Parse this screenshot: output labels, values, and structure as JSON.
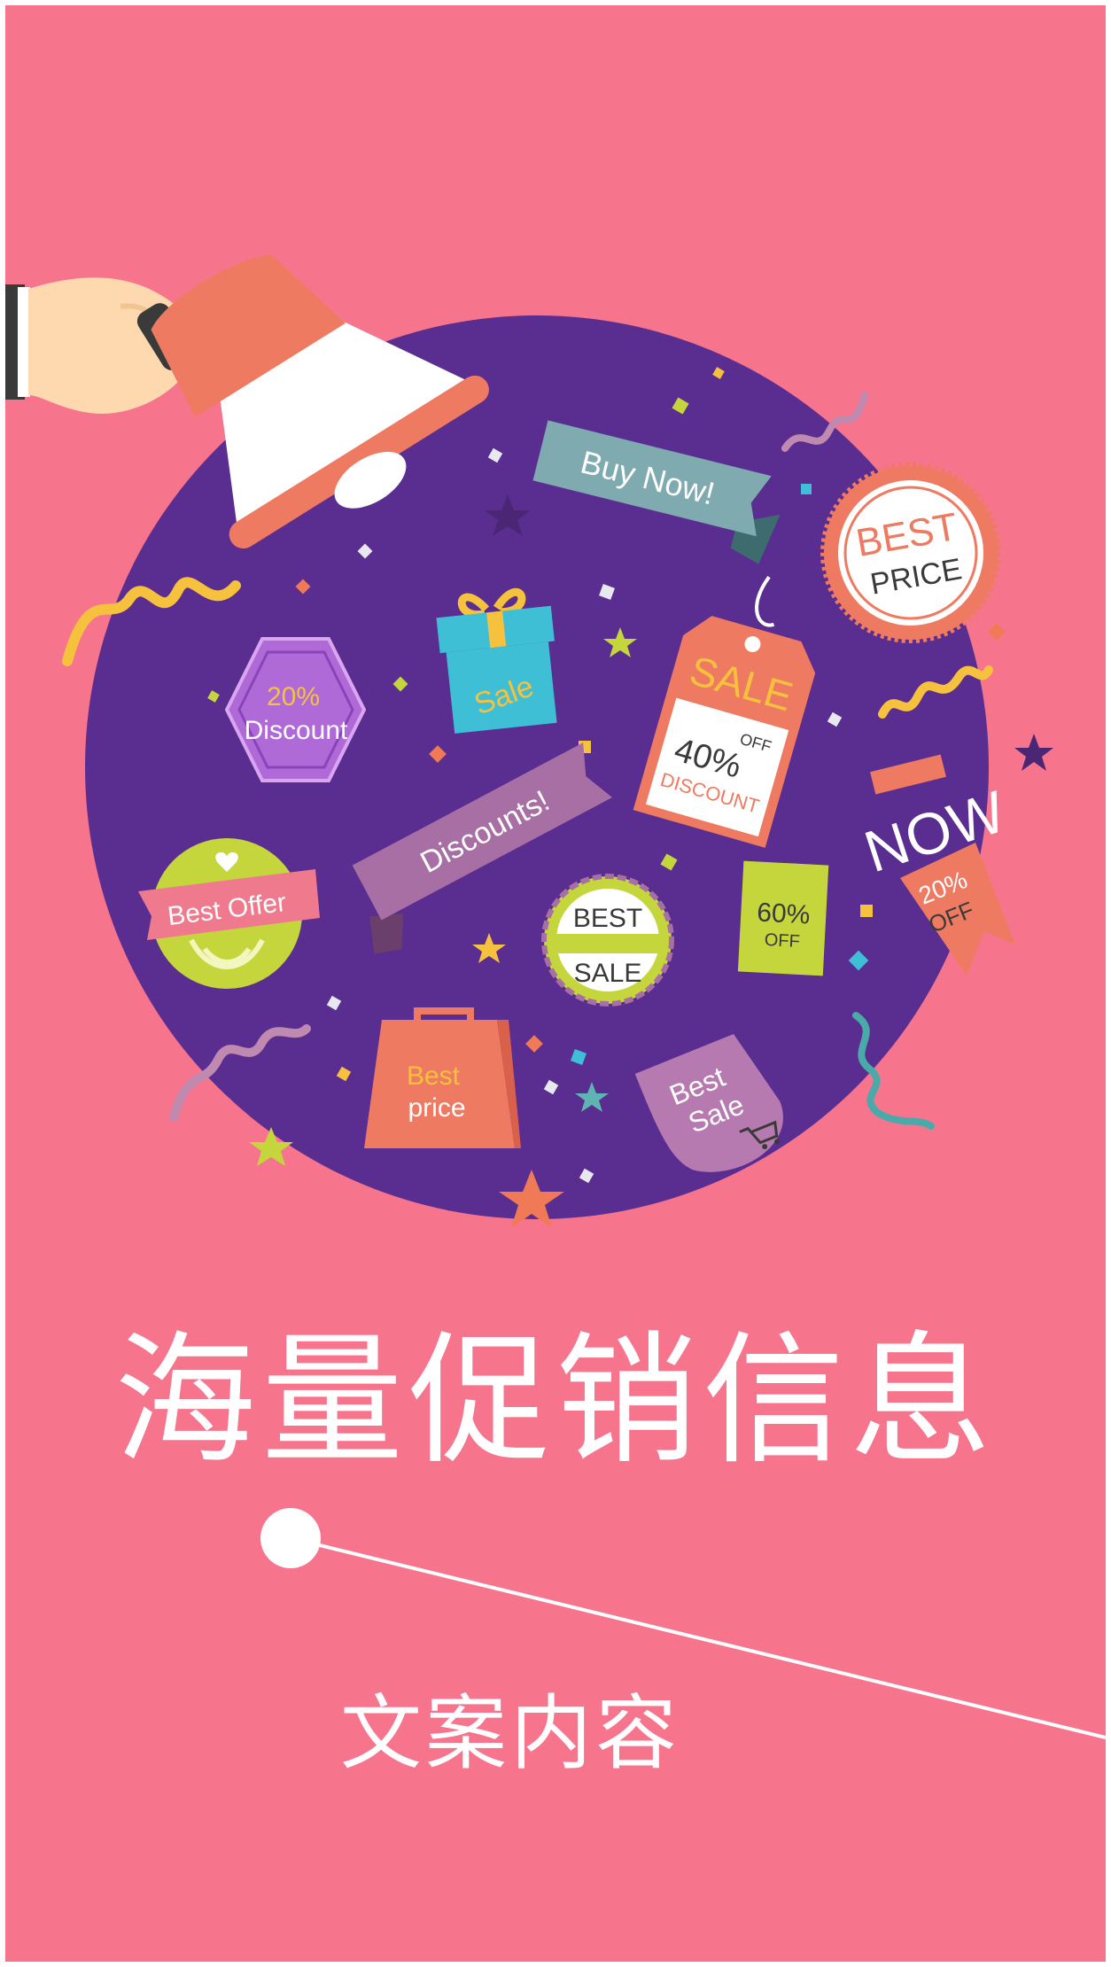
{
  "headline": "海量促销信息",
  "subline": "文案内容",
  "colors": {
    "background": "#f7748d",
    "circle": "#5a2d91",
    "text": "#ffffff"
  },
  "badges": {
    "buy_now": "Buy Now!",
    "best_price_1": "BEST",
    "best_price_2": "PRICE",
    "sale": "Sale",
    "discount_pct": "20%",
    "discount_word": "Discount",
    "tag_sale": "SALE",
    "tag_off": "OFF",
    "tag_pct": "40%",
    "tag_discount": "DISCOUNT",
    "discounts": "Discounts!",
    "now": "NOW",
    "now_pct": "20%",
    "now_off": "OFF",
    "best_offer": "Best Offer",
    "best_sale_1": "BEST",
    "best_sale_2": "SALE",
    "sixty_pct": "60%",
    "sixty_off": "OFF",
    "bag_1": "Best",
    "bag_2": "price",
    "bs_1": "Best",
    "bs_2": "Sale"
  },
  "icons": [
    "megaphone-icon",
    "hand-icon",
    "gift-icon",
    "shopping-bag-icon",
    "cart-icon",
    "star-icon"
  ]
}
